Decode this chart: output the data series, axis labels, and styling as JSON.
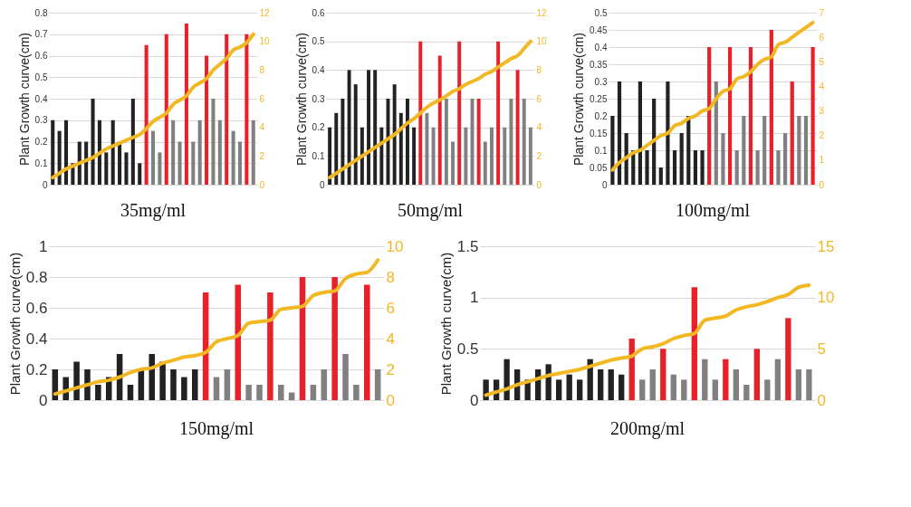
{
  "chart_data": [
    {
      "type": "bar",
      "title": "35mg/ml",
      "ylabel": "Plant Growth curve(cm)",
      "categories": [
        null,
        null,
        null,
        null,
        null,
        null,
        null,
        null,
        null,
        null,
        null,
        null,
        null,
        null,
        null,
        null,
        null,
        null,
        null,
        null,
        null,
        null,
        null,
        null,
        null,
        null,
        null,
        null,
        null,
        null,
        null
      ],
      "ylim": [
        0,
        0.8
      ],
      "yticks": [
        0,
        0.1,
        0.2,
        0.3,
        0.4,
        0.5,
        0.6,
        0.7,
        0.8
      ],
      "y2lim": [
        0,
        12
      ],
      "y2ticks": [
        0,
        2,
        4,
        6,
        8,
        10,
        12
      ],
      "grid": "y",
      "series": [
        {
          "type": "bar",
          "colors": [
            "#222222",
            "#222222",
            "#222222",
            "#222222",
            "#222222",
            "#222222",
            "#222222",
            "#222222",
            "#222222",
            "#222222",
            "#222222",
            "#222222",
            "#222222",
            "#222222",
            "#e8202a",
            "#808080",
            "#808080",
            "#e8202a",
            "#808080",
            "#808080",
            "#e8202a",
            "#808080",
            "#808080",
            "#e8202a",
            "#808080",
            "#808080",
            "#e8202a",
            "#808080",
            "#808080",
            "#e8202a",
            "#808080"
          ],
          "values": [
            0.3,
            0.25,
            0.3,
            0.1,
            0.2,
            0.2,
            0.4,
            0.3,
            0.15,
            0.3,
            0.2,
            0.15,
            0.4,
            0.1,
            0.65,
            0.25,
            0.15,
            0.7,
            0.3,
            0.2,
            0.75,
            0.2,
            0.3,
            0.6,
            0.4,
            0.3,
            0.7,
            0.25,
            0.2,
            0.7,
            0.3
          ]
        },
        {
          "type": "line",
          "axis": "y2",
          "color": "#f2b824",
          "values": [
            0.5,
            0.8,
            1.1,
            1.3,
            1.5,
            1.7,
            1.9,
            2.2,
            2.5,
            2.7,
            2.9,
            3.1,
            3.3,
            3.5,
            3.9,
            4.4,
            4.7,
            5,
            5.6,
            5.9,
            6.2,
            6.8,
            7.1,
            7.4,
            8,
            8.4,
            8.8,
            9.4,
            9.6,
            9.9,
            10.5
          ]
        }
      ]
    },
    {
      "type": "bar",
      "title": "50mg/ml",
      "ylabel": "Plant Growth curve(cm)",
      "categories": [
        null,
        null,
        null,
        null,
        null,
        null,
        null,
        null,
        null,
        null,
        null,
        null,
        null,
        null,
        null,
        null,
        null,
        null,
        null,
        null,
        null,
        null,
        null,
        null,
        null,
        null,
        null,
        null,
        null,
        null,
        null,
        null
      ],
      "ylim": [
        0,
        0.6
      ],
      "yticks": [
        0,
        0.1,
        0.2,
        0.3,
        0.4,
        0.5,
        0.6
      ],
      "y2lim": [
        0,
        12
      ],
      "y2ticks": [
        0,
        2,
        4,
        6,
        8,
        10,
        12
      ],
      "grid": "y",
      "series": [
        {
          "type": "bar",
          "colors": [
            "#222222",
            "#222222",
            "#222222",
            "#222222",
            "#222222",
            "#222222",
            "#222222",
            "#222222",
            "#222222",
            "#222222",
            "#222222",
            "#222222",
            "#222222",
            "#222222",
            "#e8202a",
            "#808080",
            "#808080",
            "#e8202a",
            "#808080",
            "#808080",
            "#e8202a",
            "#808080",
            "#808080",
            "#e8202a",
            "#808080",
            "#808080",
            "#e8202a",
            "#808080",
            "#808080",
            "#e8202a",
            "#808080",
            "#808080"
          ],
          "values": [
            0.2,
            0.25,
            0.3,
            0.4,
            0.35,
            0.2,
            0.4,
            0.4,
            0.2,
            0.3,
            0.35,
            0.25,
            0.3,
            0.2,
            0.5,
            0.25,
            0.2,
            0.45,
            0.3,
            0.15,
            0.5,
            0.2,
            0.3,
            0.3,
            0.15,
            0.2,
            0.5,
            0.2,
            0.3,
            0.4,
            0.3,
            0.2
          ]
        },
        {
          "type": "line",
          "axis": "y2",
          "color": "#f2b824",
          "values": [
            0.5,
            0.8,
            1.1,
            1.4,
            1.7,
            2,
            2.3,
            2.6,
            2.9,
            3.2,
            3.5,
            3.9,
            4.3,
            4.6,
            5,
            5.4,
            5.7,
            5.9,
            6.2,
            6.5,
            6.7,
            7,
            7.2,
            7.4,
            7.7,
            7.9,
            8.2,
            8.5,
            8.8,
            9,
            9.5,
            10
          ]
        }
      ]
    },
    {
      "type": "bar",
      "title": "100mg/ml",
      "ylabel": "Plant Growth curve(cm)",
      "categories": [
        null,
        null,
        null,
        null,
        null,
        null,
        null,
        null,
        null,
        null,
        null,
        null,
        null,
        null,
        null,
        null,
        null,
        null,
        null,
        null,
        null,
        null,
        null,
        null,
        null,
        null,
        null,
        null,
        null,
        null
      ],
      "ylim": [
        0,
        0.5
      ],
      "yticks": [
        0,
        0.05,
        0.1,
        0.15,
        0.2,
        0.25,
        0.3,
        0.35,
        0.4,
        0.45,
        0.5
      ],
      "y2lim": [
        0,
        7
      ],
      "y2ticks": [
        0,
        1,
        2,
        3,
        4,
        5,
        6,
        7
      ],
      "grid": "y",
      "series": [
        {
          "type": "bar",
          "colors": [
            "#222222",
            "#222222",
            "#222222",
            "#222222",
            "#222222",
            "#222222",
            "#222222",
            "#222222",
            "#222222",
            "#222222",
            "#222222",
            "#222222",
            "#222222",
            "#222222",
            "#e8202a",
            "#808080",
            "#808080",
            "#e8202a",
            "#808080",
            "#808080",
            "#e8202a",
            "#808080",
            "#808080",
            "#e8202a",
            "#808080",
            "#808080",
            "#e8202a",
            "#808080",
            "#808080",
            "#e8202a"
          ],
          "values": [
            0.2,
            0.3,
            0.15,
            0.1,
            0.3,
            0.1,
            0.25,
            0.05,
            0.3,
            0.1,
            0.15,
            0.2,
            0.1,
            0.1,
            0.4,
            0.3,
            0.15,
            0.4,
            0.1,
            0.2,
            0.4,
            0.1,
            0.2,
            0.45,
            0.1,
            0.15,
            0.3,
            0.2,
            0.2,
            0.4
          ]
        },
        {
          "type": "line",
          "axis": "y2",
          "color": "#f2b824",
          "values": [
            0.6,
            0.9,
            1.1,
            1.3,
            1.4,
            1.6,
            1.8,
            2,
            2.1,
            2.4,
            2.5,
            2.7,
            2.8,
            3,
            3.1,
            3.5,
            3.8,
            3.9,
            4.3,
            4.4,
            4.6,
            4.9,
            5.1,
            5.2,
            5.7,
            5.8,
            6,
            6.2,
            6.4,
            6.6
          ]
        }
      ]
    },
    {
      "type": "bar",
      "title": "150mg/ml",
      "ylabel": "Plant Growth curve(cm)",
      "categories": [
        null,
        null,
        null,
        null,
        null,
        null,
        null,
        null,
        null,
        null,
        null,
        null,
        null,
        null,
        null,
        null,
        null,
        null,
        null,
        null,
        null,
        null,
        null,
        null,
        null,
        null,
        null,
        null,
        null,
        null,
        null
      ],
      "ylim": [
        0,
        1
      ],
      "yticks": [
        0,
        0.2,
        0.4,
        0.6,
        0.8,
        1
      ],
      "y2lim": [
        0,
        10
      ],
      "y2ticks": [
        0,
        2,
        4,
        6,
        8,
        10
      ],
      "grid": "y",
      "series": [
        {
          "type": "bar",
          "colors": [
            "#222222",
            "#222222",
            "#222222",
            "#222222",
            "#222222",
            "#222222",
            "#222222",
            "#222222",
            "#222222",
            "#222222",
            "#222222",
            "#222222",
            "#222222",
            "#222222",
            "#e8202a",
            "#808080",
            "#808080",
            "#e8202a",
            "#808080",
            "#808080",
            "#e8202a",
            "#808080",
            "#808080",
            "#e8202a",
            "#808080",
            "#808080",
            "#e8202a",
            "#808080",
            "#808080",
            "#e8202a",
            "#808080"
          ],
          "values": [
            0.2,
            0.15,
            0.25,
            0.2,
            0.1,
            0.15,
            0.3,
            0.1,
            0.2,
            0.3,
            0.25,
            0.2,
            0.15,
            0.2,
            0.7,
            0.15,
            0.2,
            0.75,
            0.1,
            0.1,
            0.7,
            0.1,
            0.05,
            0.8,
            0.1,
            0.2,
            0.8,
            0.3,
            0.1,
            0.75,
            0.2
          ]
        },
        {
          "type": "line",
          "axis": "y2",
          "color": "#f2b824",
          "values": [
            0.4,
            0.6,
            0.8,
            1,
            1.2,
            1.3,
            1.5,
            1.8,
            2,
            2.1,
            2.4,
            2.6,
            2.8,
            2.9,
            3.1,
            3.8,
            4,
            4.2,
            5,
            5.1,
            5.2,
            5.9,
            6,
            6.1,
            6.8,
            7,
            7.1,
            7.9,
            8.2,
            8.3,
            9.1
          ]
        }
      ]
    },
    {
      "type": "bar",
      "title": "200mg/ml",
      "ylabel": "Plant Growth curve(cm)",
      "categories": [
        null,
        null,
        null,
        null,
        null,
        null,
        null,
        null,
        null,
        null,
        null,
        null,
        null,
        null,
        null,
        null,
        null,
        null,
        null,
        null,
        null,
        null,
        null,
        null,
        null,
        null,
        null,
        null,
        null,
        null,
        null,
        null
      ],
      "ylim": [
        0,
        1.5
      ],
      "yticks": [
        0,
        0.5,
        1,
        1.5
      ],
      "y2lim": [
        0,
        15
      ],
      "y2ticks": [
        0,
        5,
        10,
        15
      ],
      "grid": "y",
      "series": [
        {
          "type": "bar",
          "colors": [
            "#222222",
            "#222222",
            "#222222",
            "#222222",
            "#222222",
            "#222222",
            "#222222",
            "#222222",
            "#222222",
            "#222222",
            "#222222",
            "#222222",
            "#222222",
            "#222222",
            "#e8202a",
            "#808080",
            "#808080",
            "#e8202a",
            "#808080",
            "#808080",
            "#e8202a",
            "#808080",
            "#808080",
            "#e8202a",
            "#808080",
            "#808080",
            "#e8202a",
            "#808080",
            "#808080",
            "#e8202a",
            "#808080",
            "#808080"
          ],
          "values": [
            0.2,
            0.2,
            0.4,
            0.3,
            0.2,
            0.3,
            0.35,
            0.2,
            0.25,
            0.2,
            0.4,
            0.3,
            0.3,
            0.25,
            0.6,
            0.2,
            0.3,
            0.5,
            0.25,
            0.2,
            1.1,
            0.4,
            0.2,
            0.4,
            0.3,
            0.15,
            0.5,
            0.2,
            0.4,
            0.8,
            0.3,
            0.3
          ]
        },
        {
          "type": "line",
          "axis": "y2",
          "color": "#f2b824",
          "values": [
            0.5,
            0.8,
            1.1,
            1.5,
            1.8,
            2.1,
            2.4,
            2.6,
            2.8,
            3,
            3.3,
            3.6,
            3.9,
            4.1,
            4.3,
            5,
            5.2,
            5.5,
            6,
            6.3,
            6.5,
            7.8,
            8,
            8.2,
            8.8,
            9.1,
            9.3,
            9.6,
            10,
            10.3,
            11,
            11.2
          ]
        }
      ]
    }
  ]
}
